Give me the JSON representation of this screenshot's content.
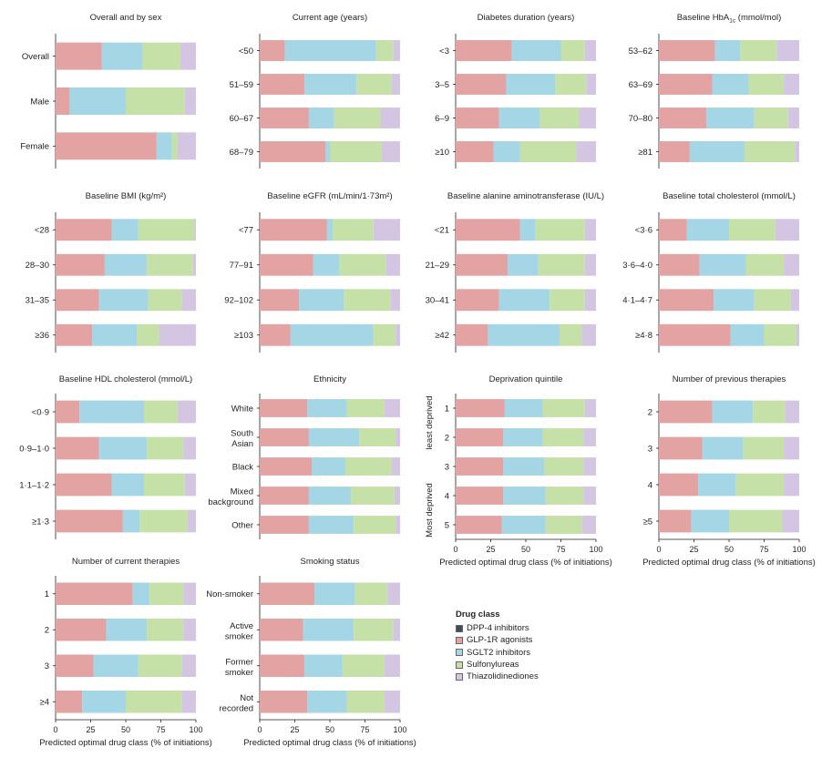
{
  "colors": {
    "DPP-4 inhibitors": "#3d4e5c",
    "GLP-1R agonists": "#e3a3a3",
    "SGLT2 inhibitors": "#a5d6e6",
    "Sulfonylureas": "#c5e1a7",
    "Thiazolidinediones": "#d4c6e3"
  },
  "legend": {
    "title": "Drug class",
    "items": [
      "DPP-4 inhibitors",
      "GLP-1R agonists",
      "SGLT2 inhibitors",
      "Sulfonylureas",
      "Thiazolidinediones"
    ]
  },
  "chart_data": [
    {
      "type": "bar",
      "stacked": "horizontal",
      "title": "Overall and by sex",
      "categories": [
        "Overall",
        "Male",
        "Female"
      ],
      "series": [
        {
          "name": "DPP-4 inhibitors",
          "values": [
            0,
            0,
            0
          ]
        },
        {
          "name": "GLP-1R agonists",
          "values": [
            33,
            10,
            72
          ]
        },
        {
          "name": "SGLT2 inhibitors",
          "values": [
            29,
            40,
            11
          ]
        },
        {
          "name": "Sulfonylureas",
          "values": [
            27,
            42,
            4
          ]
        },
        {
          "name": "Thiazolidinediones",
          "values": [
            11,
            8,
            13
          ]
        }
      ]
    },
    {
      "type": "bar",
      "stacked": "horizontal",
      "title": "Current age (years)",
      "categories": [
        "<50",
        "51–59",
        "60–67",
        "68–79"
      ],
      "series": [
        {
          "name": "DPP-4 inhibitors",
          "values": [
            0,
            0,
            0,
            0
          ]
        },
        {
          "name": "GLP-1R agonists",
          "values": [
            18,
            32,
            35,
            47
          ]
        },
        {
          "name": "SGLT2 inhibitors",
          "values": [
            65,
            37,
            18,
            3
          ]
        },
        {
          "name": "Sulfonylureas",
          "values": [
            12,
            25,
            33,
            37
          ]
        },
        {
          "name": "Thiazolidinediones",
          "values": [
            5,
            6,
            14,
            13
          ]
        }
      ]
    },
    {
      "type": "bar",
      "stacked": "horizontal",
      "title": "Diabetes duration (years)",
      "categories": [
        "<3",
        "3–5",
        "6–9",
        "≥10"
      ],
      "series": [
        {
          "name": "DPP-4 inhibitors",
          "values": [
            0,
            0,
            0,
            0
          ]
        },
        {
          "name": "GLP-1R agonists",
          "values": [
            40,
            36,
            31,
            27
          ]
        },
        {
          "name": "SGLT2 inhibitors",
          "values": [
            35,
            35,
            29,
            19
          ]
        },
        {
          "name": "Sulfonylureas",
          "values": [
            17,
            22,
            28,
            40
          ]
        },
        {
          "name": "Thiazolidinediones",
          "values": [
            8,
            7,
            12,
            14
          ]
        }
      ]
    },
    {
      "type": "bar",
      "stacked": "horizontal",
      "title": "Baseline HbA1c (mmol/mol)",
      "categories": [
        "53–62",
        "63–69",
        "70–80",
        "≥81"
      ],
      "series": [
        {
          "name": "DPP-4 inhibitors",
          "values": [
            0,
            0,
            0,
            0
          ]
        },
        {
          "name": "GLP-1R agonists",
          "values": [
            40,
            38,
            34,
            22
          ]
        },
        {
          "name": "SGLT2 inhibitors",
          "values": [
            18,
            26,
            34,
            39
          ]
        },
        {
          "name": "Sulfonylureas",
          "values": [
            26,
            25,
            24,
            36
          ]
        },
        {
          "name": "Thiazolidinediones",
          "values": [
            16,
            11,
            8,
            3
          ]
        }
      ]
    },
    {
      "type": "bar",
      "stacked": "horizontal",
      "title": "Baseline BMI (kg/m²)",
      "categories": [
        "<28",
        "28–30",
        "31–35",
        "≥36"
      ],
      "series": [
        {
          "name": "DPP-4 inhibitors",
          "values": [
            0,
            0,
            0,
            0
          ]
        },
        {
          "name": "GLP-1R agonists",
          "values": [
            40,
            35,
            31,
            26
          ]
        },
        {
          "name": "SGLT2 inhibitors",
          "values": [
            19,
            30,
            35,
            32
          ]
        },
        {
          "name": "Sulfonylureas",
          "values": [
            40,
            33,
            24,
            16
          ]
        },
        {
          "name": "Thiazolidinediones",
          "values": [
            1,
            2,
            10,
            26
          ]
        }
      ]
    },
    {
      "type": "bar",
      "stacked": "horizontal",
      "title": "Baseline eGFR (mL/min/1·73m²)",
      "categories": [
        "<77",
        "77–91",
        "92–102",
        "≥103"
      ],
      "series": [
        {
          "name": "DPP-4 inhibitors",
          "values": [
            0,
            0,
            0,
            0
          ]
        },
        {
          "name": "GLP-1R agonists",
          "values": [
            48,
            38,
            28,
            22
          ]
        },
        {
          "name": "SGLT2 inhibitors",
          "values": [
            4,
            19,
            32,
            59
          ]
        },
        {
          "name": "Sulfonylureas",
          "values": [
            29,
            33,
            33,
            16
          ]
        },
        {
          "name": "Thiazolidinediones",
          "values": [
            19,
            10,
            7,
            3
          ]
        }
      ]
    },
    {
      "type": "bar",
      "stacked": "horizontal",
      "title": "Baseline alanine aminotransferase (IU/L)",
      "categories": [
        "<21",
        "21–29",
        "30–41",
        "≥42"
      ],
      "series": [
        {
          "name": "DPP-4 inhibitors",
          "values": [
            0,
            0,
            0,
            0
          ]
        },
        {
          "name": "GLP-1R agonists",
          "values": [
            46,
            37,
            31,
            23
          ]
        },
        {
          "name": "SGLT2 inhibitors",
          "values": [
            11,
            22,
            36,
            51
          ]
        },
        {
          "name": "Sulfonylureas",
          "values": [
            35,
            33,
            25,
            16
          ]
        },
        {
          "name": "Thiazolidinediones",
          "values": [
            8,
            8,
            8,
            10
          ]
        }
      ]
    },
    {
      "type": "bar",
      "stacked": "horizontal",
      "title": "Baseline total cholesterol (mmol/L)",
      "categories": [
        "<3·6",
        "3·6–4·0",
        "4·1–4·7",
        "≥4·8"
      ],
      "series": [
        {
          "name": "DPP-4 inhibitors",
          "values": [
            0,
            0,
            0,
            0
          ]
        },
        {
          "name": "GLP-1R agonists",
          "values": [
            20,
            29,
            39,
            51
          ]
        },
        {
          "name": "SGLT2 inhibitors",
          "values": [
            30,
            33,
            29,
            24
          ]
        },
        {
          "name": "Sulfonylureas",
          "values": [
            33,
            27,
            26,
            23
          ]
        },
        {
          "name": "Thiazolidinediones",
          "values": [
            17,
            11,
            6,
            2
          ]
        }
      ]
    },
    {
      "type": "bar",
      "stacked": "horizontal",
      "title": "Baseline HDL cholesterol (mmol/L)",
      "categories": [
        "<0·9",
        "0·9–1·0",
        "1·1–1·2",
        "≥1·3"
      ],
      "series": [
        {
          "name": "DPP-4 inhibitors",
          "values": [
            0,
            0,
            0,
            0
          ]
        },
        {
          "name": "GLP-1R agonists",
          "values": [
            17,
            31,
            40,
            48
          ]
        },
        {
          "name": "SGLT2 inhibitors",
          "values": [
            46,
            34,
            23,
            12
          ]
        },
        {
          "name": "Sulfonylureas",
          "values": [
            24,
            26,
            29,
            34
          ]
        },
        {
          "name": "Thiazolidinediones",
          "values": [
            13,
            9,
            8,
            6
          ]
        }
      ]
    },
    {
      "type": "bar",
      "stacked": "horizontal",
      "title": "Ethnicity",
      "categories": [
        "White",
        "South Asian",
        "Black",
        "Mixed background",
        "Other"
      ],
      "series": [
        {
          "name": "DPP-4 inhibitors",
          "values": [
            0,
            0,
            0,
            0,
            0
          ]
        },
        {
          "name": "GLP-1R agonists",
          "values": [
            34,
            35,
            37,
            35,
            35
          ]
        },
        {
          "name": "SGLT2 inhibitors",
          "values": [
            28,
            36,
            24,
            30,
            32
          ]
        },
        {
          "name": "Sulfonylureas",
          "values": [
            27,
            26,
            33,
            31,
            30
          ]
        },
        {
          "name": "Thiazolidinediones",
          "values": [
            11,
            3,
            6,
            4,
            3
          ]
        }
      ]
    },
    {
      "type": "bar",
      "stacked": "horizontal",
      "title": "Deprivation quintile",
      "categories": [
        "1",
        "2",
        "3",
        "4",
        "5"
      ],
      "side_labels": [
        "least deprived",
        "Most deprived"
      ],
      "series": [
        {
          "name": "DPP-4 inhibitors",
          "values": [
            0,
            0,
            0,
            0,
            0
          ]
        },
        {
          "name": "GLP-1R agonists",
          "values": [
            35,
            34,
            34,
            34,
            33
          ]
        },
        {
          "name": "SGLT2 inhibitors",
          "values": [
            27,
            28,
            29,
            30,
            31
          ]
        },
        {
          "name": "Sulfonylureas",
          "values": [
            30,
            29,
            28,
            27,
            26
          ]
        },
        {
          "name": "Thiazolidinediones",
          "values": [
            8,
            9,
            9,
            9,
            10
          ]
        }
      ]
    },
    {
      "type": "bar",
      "stacked": "horizontal",
      "title": "Number of previous therapies",
      "categories": [
        "2",
        "3",
        "4",
        "≥5"
      ],
      "series": [
        {
          "name": "DPP-4 inhibitors",
          "values": [
            0,
            0,
            0,
            0
          ]
        },
        {
          "name": "GLP-1R agonists",
          "values": [
            38,
            31,
            28,
            23
          ]
        },
        {
          "name": "SGLT2 inhibitors",
          "values": [
            29,
            29,
            27,
            27
          ]
        },
        {
          "name": "Sulfonylureas",
          "values": [
            23,
            29,
            34,
            38
          ]
        },
        {
          "name": "Thiazolidinediones",
          "values": [
            10,
            11,
            11,
            12
          ]
        }
      ]
    },
    {
      "type": "bar",
      "stacked": "horizontal",
      "title": "Number of current therapies",
      "categories": [
        "1",
        "2",
        "3",
        "≥4"
      ],
      "xlabel": "Predicted optimal drug class (% of initiations)",
      "ticks": [
        "0",
        "25",
        "50",
        "75",
        "100"
      ],
      "xlim": [
        0,
        100
      ],
      "series": [
        {
          "name": "DPP-4 inhibitors",
          "values": [
            0,
            0,
            0,
            0
          ]
        },
        {
          "name": "GLP-1R agonists",
          "values": [
            55,
            36,
            27,
            19
          ]
        },
        {
          "name": "SGLT2 inhibitors",
          "values": [
            12,
            29,
            32,
            31
          ]
        },
        {
          "name": "Sulfonylureas",
          "values": [
            24,
            26,
            31,
            40
          ]
        },
        {
          "name": "Thiazolidinediones",
          "values": [
            9,
            9,
            10,
            10
          ]
        }
      ]
    },
    {
      "type": "bar",
      "stacked": "horizontal",
      "title": "Smoking status",
      "categories": [
        "Non-smoker",
        "Active smoker",
        "Former smoker",
        "Not recorded"
      ],
      "xlabel": "Predicted optimal drug class (% of initiations)",
      "ticks": [
        "0",
        "25",
        "50",
        "75",
        "100"
      ],
      "xlim": [
        0,
        100
      ],
      "series": [
        {
          "name": "DPP-4 inhibitors",
          "values": [
            0,
            0,
            0,
            0
          ]
        },
        {
          "name": "GLP-1R agonists",
          "values": [
            39,
            31,
            32,
            34
          ]
        },
        {
          "name": "SGLT2 inhibitors",
          "values": [
            29,
            36,
            27,
            28
          ]
        },
        {
          "name": "Sulfonylureas",
          "values": [
            23,
            28,
            30,
            27
          ]
        },
        {
          "name": "Thiazolidinediones",
          "values": [
            9,
            5,
            11,
            11
          ]
        }
      ]
    }
  ],
  "axis_bottom": {
    "xlabel": "Predicted optimal drug class (% of initiations)",
    "ticks": [
      "0",
      "25",
      "50",
      "75",
      "100"
    ],
    "xlim": [
      0,
      100
    ]
  }
}
